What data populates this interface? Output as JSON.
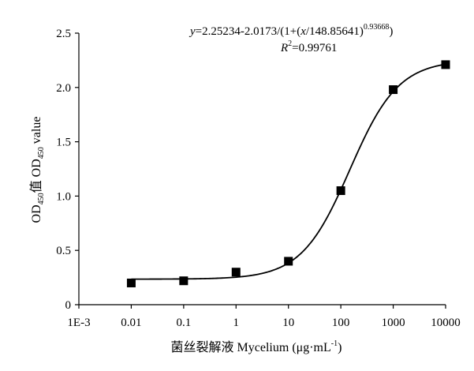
{
  "chart_data": {
    "type": "scatter",
    "x_scale": "log",
    "xlim": [
      0.001,
      10000
    ],
    "ylim": [
      0,
      2.5
    ],
    "x_ticks": [
      0.001,
      0.01,
      0.1,
      1,
      10,
      100,
      1000,
      10000
    ],
    "x_tick_labels": [
      "1E-3",
      "0.01",
      "0.1",
      "1",
      "10",
      "100",
      "1000",
      "10000"
    ],
    "y_ticks": [
      0,
      0.5,
      1.0,
      1.5,
      2.0,
      2.5
    ],
    "y_tick_labels": [
      "0",
      "0.5",
      "1.0",
      "1.5",
      "2.0",
      "2.5"
    ],
    "xlabel": {
      "main": "菌丝裂解液 Mycelium (μg·mL",
      "sup": "-1",
      "tail": ")"
    },
    "ylabel": {
      "p1": "OD",
      "s1": "450",
      "p2": "值 OD",
      "s2": "450",
      "p3": " value"
    },
    "points": {
      "x": [
        0.01,
        0.1,
        1,
        10,
        100,
        1000,
        10000
      ],
      "y": [
        0.2,
        0.22,
        0.3,
        0.4,
        1.05,
        1.98,
        2.21
      ]
    },
    "fit": {
      "A": 2.25234,
      "B": 2.0173,
      "C": 148.85641,
      "n": 0.93668,
      "equation": {
        "y_var": "y",
        "body": "=2.25234-2.0173/(1+(",
        "x_var": "x",
        "tail": "/148.85641)",
        "exp": "0.93668",
        "close": ")"
      },
      "r2": {
        "var": "R",
        "exp": "2",
        "value": "=0.99761"
      }
    },
    "grid": false,
    "marker": "square",
    "color": "#000000"
  }
}
